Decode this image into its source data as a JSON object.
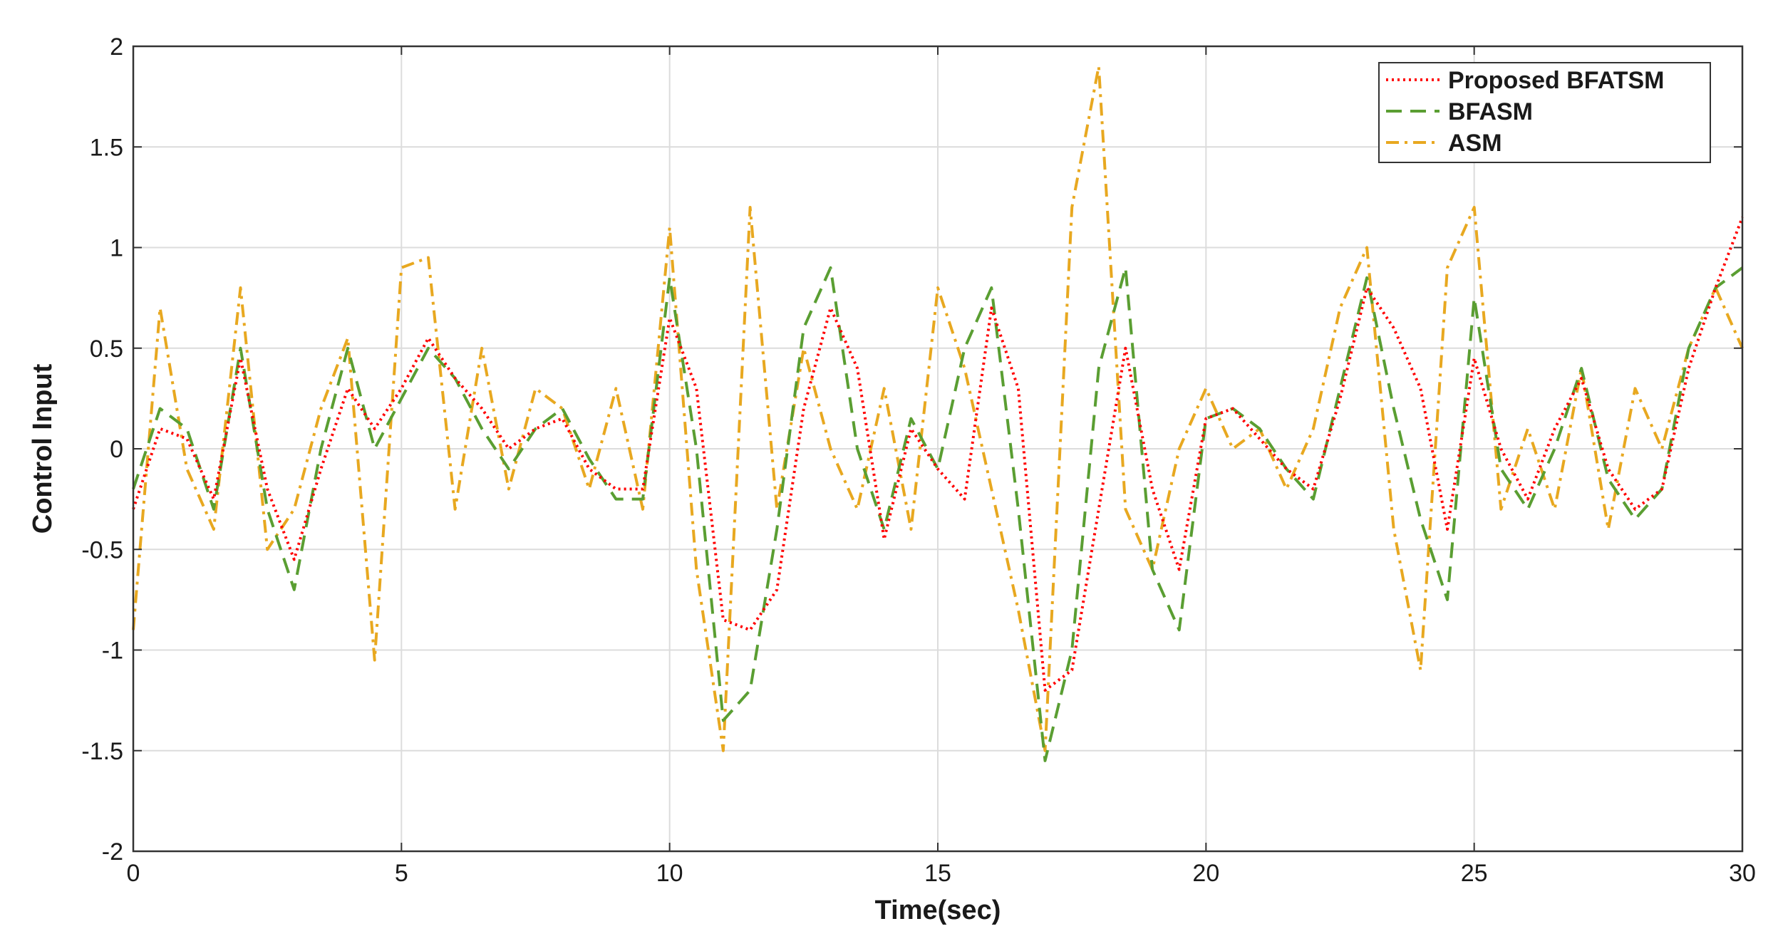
{
  "chart_data": {
    "type": "line",
    "title": "",
    "xlabel": "Time(sec)",
    "ylabel": "Control Input",
    "xlim": [
      0,
      30
    ],
    "ylim": [
      -2,
      2
    ],
    "xticks": [
      0,
      5,
      10,
      15,
      20,
      25,
      30
    ],
    "yticks": [
      -2,
      -1.5,
      -1,
      -0.5,
      0,
      0.5,
      1,
      1.5,
      2
    ],
    "xtick_labels": [
      "0",
      "5",
      "10",
      "15",
      "20",
      "25",
      "30"
    ],
    "ytick_labels": [
      "-2",
      "-1.5",
      "-1",
      "-0.5",
      "0",
      "0.5",
      "1",
      "1.5",
      "2"
    ],
    "grid": true,
    "legend_position": "top-right",
    "x": [
      0,
      0.5,
      1,
      1.5,
      2,
      2.5,
      3,
      3.5,
      4,
      4.5,
      5,
      5.5,
      6,
      6.5,
      7,
      7.5,
      8,
      8.5,
      9,
      9.5,
      10,
      10.5,
      11,
      11.5,
      12,
      12.5,
      13,
      13.5,
      14,
      14.5,
      15,
      15.5,
      16,
      16.5,
      17,
      17.5,
      18,
      18.5,
      19,
      19.5,
      20,
      20.5,
      21,
      21.5,
      22,
      22.5,
      23,
      23.5,
      24,
      24.5,
      25,
      25.5,
      26,
      26.5,
      27,
      27.5,
      28,
      28.5,
      29,
      29.5,
      30
    ],
    "series": [
      {
        "name": "Proposed BFATSM",
        "color": "#ff0000",
        "dash": "dotted",
        "values": [
          -0.3,
          0.1,
          0.05,
          -0.25,
          0.45,
          -0.2,
          -0.55,
          -0.1,
          0.3,
          0.1,
          0.3,
          0.55,
          0.35,
          0.2,
          0.0,
          0.1,
          0.15,
          -0.1,
          -0.2,
          -0.2,
          0.65,
          0.3,
          -0.85,
          -0.9,
          -0.7,
          0.2,
          0.7,
          0.4,
          -0.45,
          0.1,
          -0.1,
          -0.25,
          0.7,
          0.3,
          -1.2,
          -1.1,
          -0.3,
          0.5,
          -0.2,
          -0.6,
          0.15,
          0.2,
          0.05,
          -0.1,
          -0.2,
          0.25,
          0.8,
          0.6,
          0.3,
          -0.4,
          0.45,
          0.0,
          -0.25,
          0.1,
          0.35,
          -0.1,
          -0.3,
          -0.2,
          0.4,
          0.8,
          1.15
        ]
      },
      {
        "name": "BFASM",
        "color": "#5a9e32",
        "dash": "dashed",
        "values": [
          -0.2,
          0.2,
          0.1,
          -0.3,
          0.5,
          -0.3,
          -0.7,
          0.0,
          0.5,
          0.0,
          0.25,
          0.5,
          0.35,
          0.1,
          -0.1,
          0.1,
          0.2,
          -0.05,
          -0.25,
          -0.25,
          0.85,
          0.0,
          -1.35,
          -1.2,
          -0.4,
          0.6,
          0.9,
          0.0,
          -0.4,
          0.15,
          -0.1,
          0.5,
          0.8,
          -0.3,
          -1.55,
          -1.0,
          0.4,
          0.9,
          -0.6,
          -0.9,
          0.15,
          0.2,
          0.1,
          -0.1,
          -0.25,
          0.3,
          0.85,
          0.2,
          -0.35,
          -0.75,
          0.75,
          -0.1,
          -0.3,
          0.0,
          0.4,
          -0.15,
          -0.35,
          -0.2,
          0.5,
          0.8,
          0.9
        ]
      },
      {
        "name": "ASM",
        "color": "#e8a820",
        "dash": "dashdot",
        "values": [
          -0.9,
          0.7,
          -0.1,
          -0.4,
          0.8,
          -0.5,
          -0.3,
          0.2,
          0.55,
          -1.05,
          0.9,
          0.95,
          -0.3,
          0.5,
          -0.2,
          0.3,
          0.2,
          -0.2,
          0.3,
          -0.3,
          1.1,
          -0.6,
          -1.5,
          1.2,
          -0.3,
          0.5,
          0.0,
          -0.3,
          0.3,
          -0.4,
          0.8,
          0.4,
          -0.2,
          -0.8,
          -1.5,
          1.2,
          1.9,
          -0.3,
          -0.6,
          0.0,
          0.3,
          0.0,
          0.1,
          -0.2,
          0.1,
          0.7,
          1.0,
          -0.4,
          -1.1,
          0.9,
          1.2,
          -0.3,
          0.1,
          -0.3,
          0.4,
          -0.4,
          0.3,
          0.0,
          0.5,
          0.8,
          0.5
        ]
      }
    ]
  }
}
